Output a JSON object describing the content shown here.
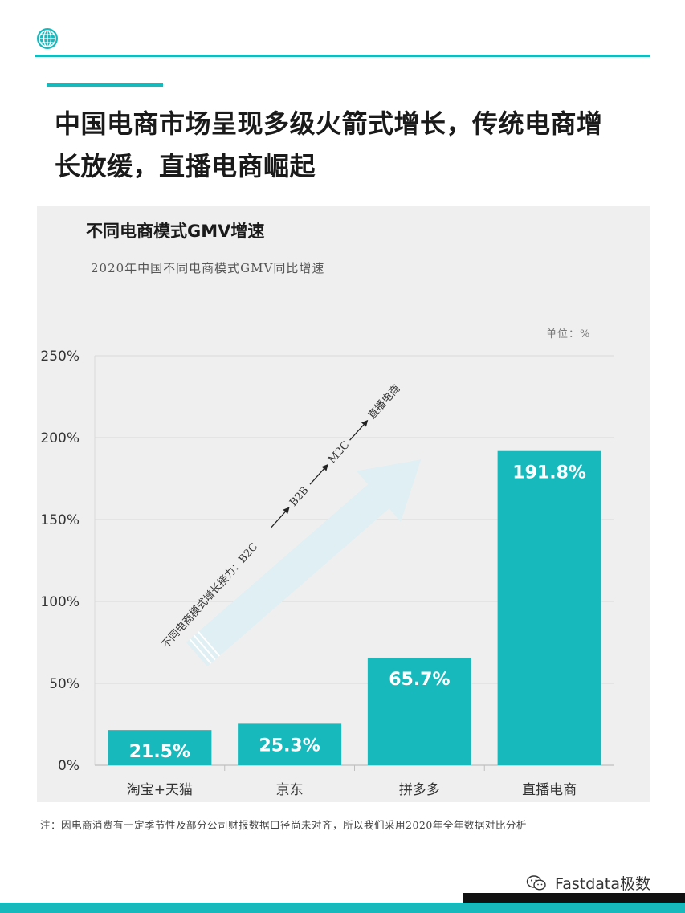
{
  "header": {
    "logo_icon": "globe-icon",
    "headline_line1": "中国电商市场呈现多级火箭式增长，传统电商增",
    "headline_line2": "长放缓，直播电商崛起"
  },
  "colors": {
    "accent": "#17b9bd",
    "bar": "#17b9bd",
    "arrow": "#dfeff3",
    "panel": "#efefef"
  },
  "chart_data": {
    "type": "bar",
    "title": "不同电商模式GMV增速",
    "subtitle": "2020年中国不同电商模式GMV同比增速",
    "unit_label": "单位：%",
    "categories": [
      "淘宝+天猫",
      "京东",
      "拼多多",
      "直播电商"
    ],
    "values": [
      21.5,
      25.3,
      65.7,
      191.8
    ],
    "value_labels": [
      "21.5%",
      "25.3%",
      "65.7%",
      "191.8%"
    ],
    "ylim": [
      0,
      250
    ],
    "yticks": [
      0,
      50,
      100,
      150,
      200,
      250
    ],
    "ytick_labels": [
      "0%",
      "50%",
      "100%",
      "150%",
      "200%",
      "250%"
    ],
    "grid": true,
    "annotation": {
      "lead": "不同电商模式增长接力：B2C",
      "stage2": "B2B",
      "stage3": "M2C",
      "stage4": "直播电商"
    }
  },
  "footer": {
    "note": "注：因电商消费有一定季节性及部分公司财报数据口径尚未对齐，所以我们采用2020年全年数据对比分析",
    "watermark": "Fastdata极数",
    "watermark_icon": "wechat-icon"
  }
}
